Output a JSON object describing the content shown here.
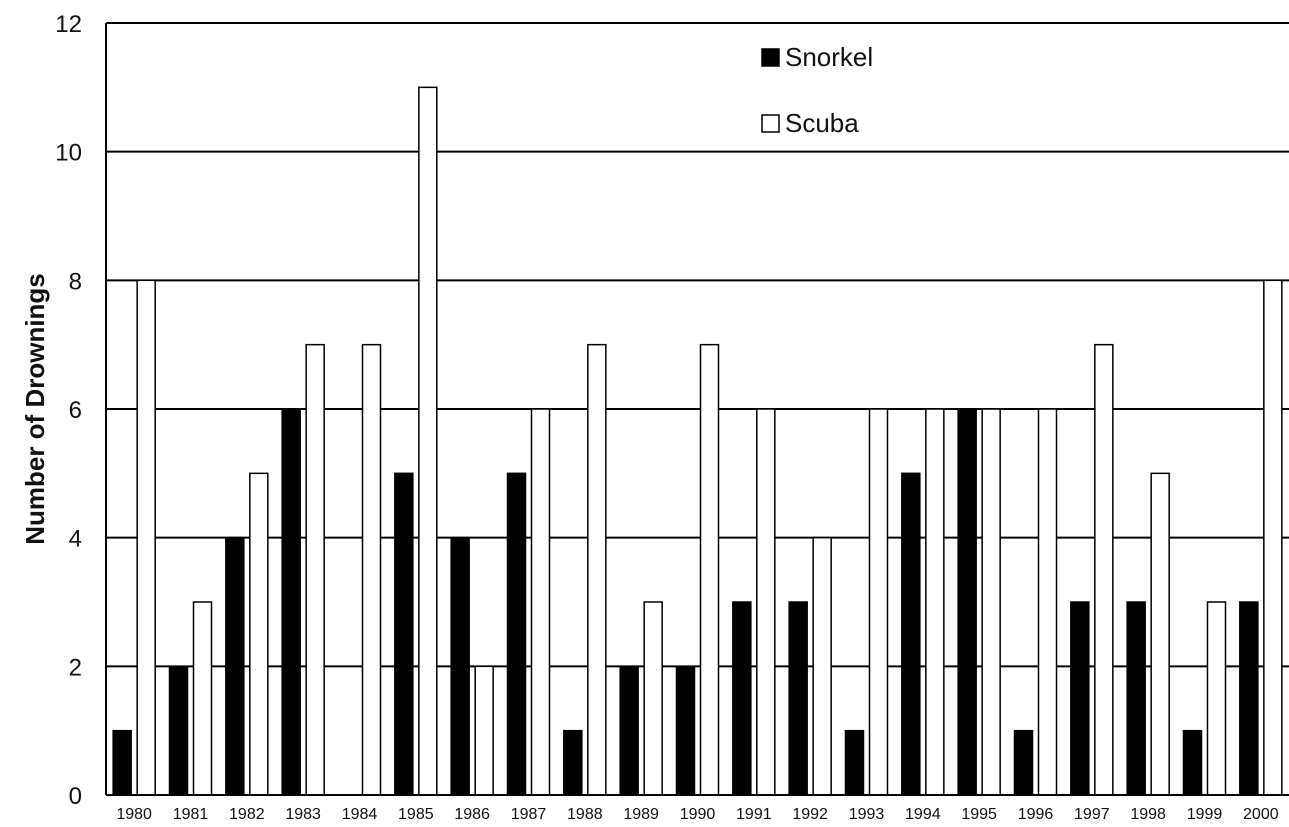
{
  "chart_data": {
    "type": "bar",
    "title": "",
    "xlabel": "",
    "ylabel": "Number of Drownings",
    "ylim": [
      0,
      12
    ],
    "yticks": [
      "0",
      "2",
      "4",
      "6",
      "8",
      "10",
      "12"
    ],
    "grid": true,
    "legend_position": "top-right",
    "categories": [
      "1980",
      "1981",
      "1982",
      "1983",
      "1984",
      "1985",
      "1986",
      "1987",
      "1988",
      "1989",
      "1990",
      "1991",
      "1992",
      "1993",
      "1994",
      "1995",
      "1996",
      "1997",
      "1998",
      "1999",
      "2000"
    ],
    "series": [
      {
        "name": "Snorkel",
        "color": "#000000",
        "values": [
          1,
          2,
          4,
          6,
          0,
          5,
          4,
          5,
          1,
          2,
          2,
          3,
          3,
          1,
          5,
          6,
          1,
          3,
          3,
          1,
          3
        ]
      },
      {
        "name": "Scuba",
        "color": "#ffffff",
        "values": [
          8,
          3,
          5,
          7,
          7,
          11,
          2,
          6,
          7,
          3,
          7,
          6,
          4,
          6,
          6,
          6,
          6,
          7,
          5,
          3,
          8
        ]
      }
    ]
  }
}
